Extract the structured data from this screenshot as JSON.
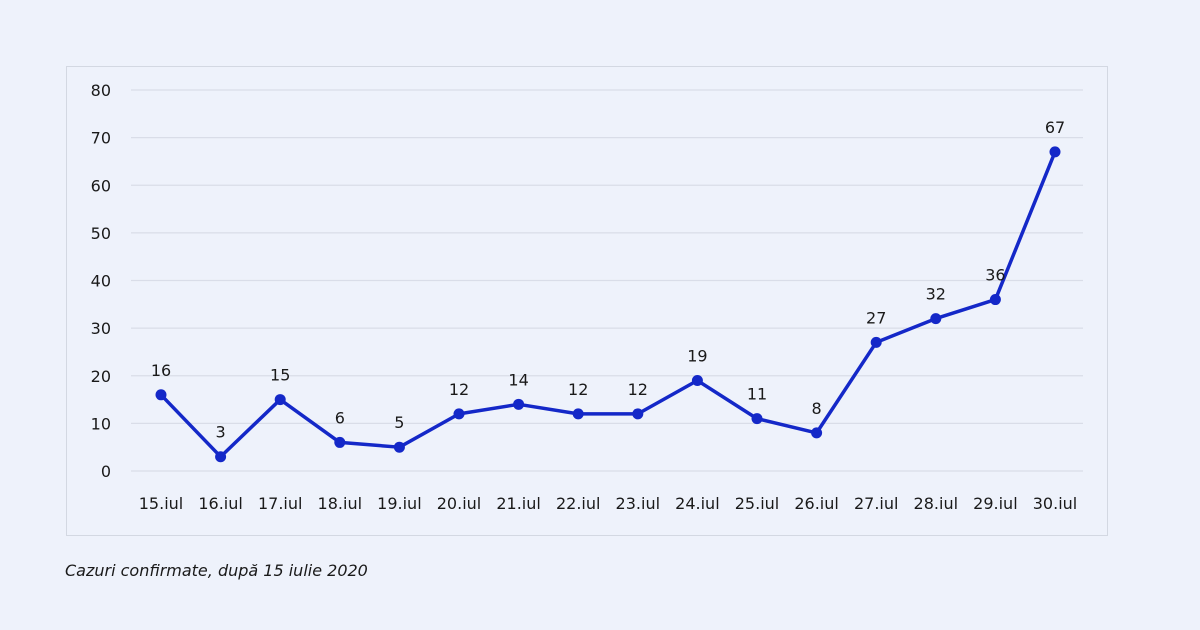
{
  "caption": "Cazuri confirmate, după 15 iulie 2020",
  "colors": {
    "line": "#1428c8",
    "grid": "#d9dde8",
    "background": "#eef2fb"
  },
  "chart_data": {
    "type": "line",
    "categories": [
      "15.iul",
      "16.iul",
      "17.iul",
      "18.iul",
      "19.iul",
      "20.iul",
      "21.iul",
      "22.iul",
      "23.iul",
      "24.iul",
      "25.iul",
      "26.iul",
      "27.iul",
      "28.iul",
      "29.iul",
      "30.iul"
    ],
    "series": [
      {
        "values": [
          16,
          3,
          15,
          6,
          5,
          12,
          14,
          12,
          12,
          19,
          11,
          8,
          27,
          32,
          36,
          67
        ]
      }
    ],
    "data_labels": [
      "16",
      "3",
      "15",
      "6",
      "5",
      "12",
      "14",
      "12",
      "12",
      "19",
      "11",
      "8",
      "27",
      "32",
      "36",
      "67"
    ],
    "ylim": [
      0,
      80
    ],
    "yticks": [
      0,
      10,
      20,
      30,
      40,
      50,
      60,
      70,
      80
    ],
    "ytick_labels": [
      "0",
      "10",
      "20",
      "30",
      "40",
      "50",
      "60",
      "70",
      "80"
    ],
    "grid": true,
    "legend": "none"
  }
}
